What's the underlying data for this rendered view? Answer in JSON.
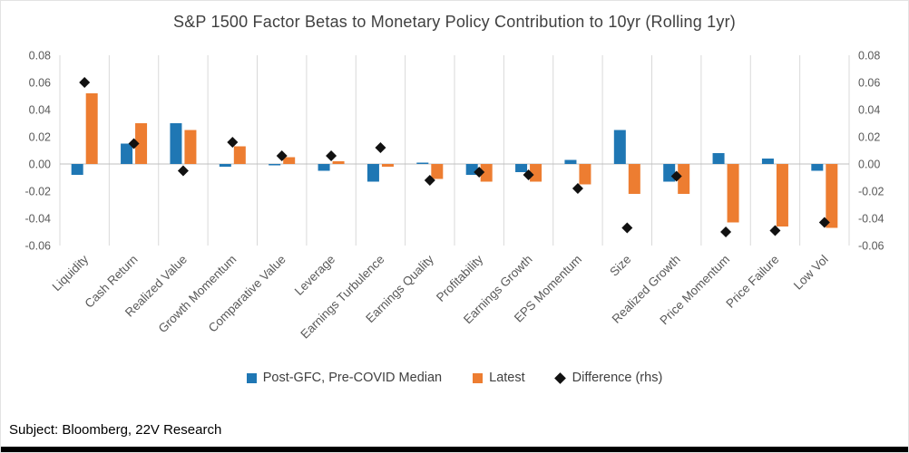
{
  "footer": {
    "source_label": "Subject: Bloomberg, 22V Research"
  },
  "chart_data": {
    "type": "bar",
    "title": "S&P 1500 Factor Betas to Monetary Policy Contribution to 10yr (Rolling 1yr)",
    "categories": [
      "Liquidity",
      "Cash Return",
      "Realized Value",
      "Growth Momentum",
      "Comparative Value",
      "Leverage",
      "Earnings Turbulence",
      "Earnings Quality",
      "Profitability",
      "Earnings Growth",
      "EPS Momentum",
      "Size",
      "Realized Growth",
      "Price Momentum",
      "Price Failure",
      "Low Vol"
    ],
    "series": [
      {
        "name": "Post-GFC, Pre-COVID Median",
        "type": "bar",
        "color": "#1F77B4",
        "values": [
          -0.008,
          0.015,
          0.03,
          -0.002,
          -0.001,
          -0.005,
          -0.013,
          0.001,
          -0.008,
          -0.006,
          0.003,
          0.025,
          -0.013,
          0.008,
          0.004,
          -0.005
        ]
      },
      {
        "name": "Latest",
        "type": "bar",
        "color": "#ED7D31",
        "values": [
          0.052,
          0.03,
          0.025,
          0.013,
          0.005,
          0.002,
          -0.002,
          -0.011,
          -0.013,
          -0.013,
          -0.015,
          -0.022,
          -0.022,
          -0.043,
          -0.046,
          -0.047
        ]
      },
      {
        "name": "Difference (rhs)",
        "type": "diamond",
        "color": "#111111",
        "values": [
          0.06,
          0.015,
          -0.005,
          0.016,
          0.006,
          0.006,
          0.012,
          -0.012,
          -0.006,
          -0.008,
          -0.018,
          -0.047,
          -0.009,
          -0.05,
          -0.049,
          -0.043
        ]
      }
    ],
    "ylim": [
      -0.06,
      0.08
    ],
    "yticks": [
      0.08,
      0.06,
      0.04,
      0.02,
      0,
      -0.02,
      -0.04,
      -0.06
    ],
    "ylabel": "",
    "xlabel": "",
    "grid": "vertical",
    "legend_position": "bottom",
    "axes": {
      "left_axis": true,
      "right_axis": true
    }
  }
}
